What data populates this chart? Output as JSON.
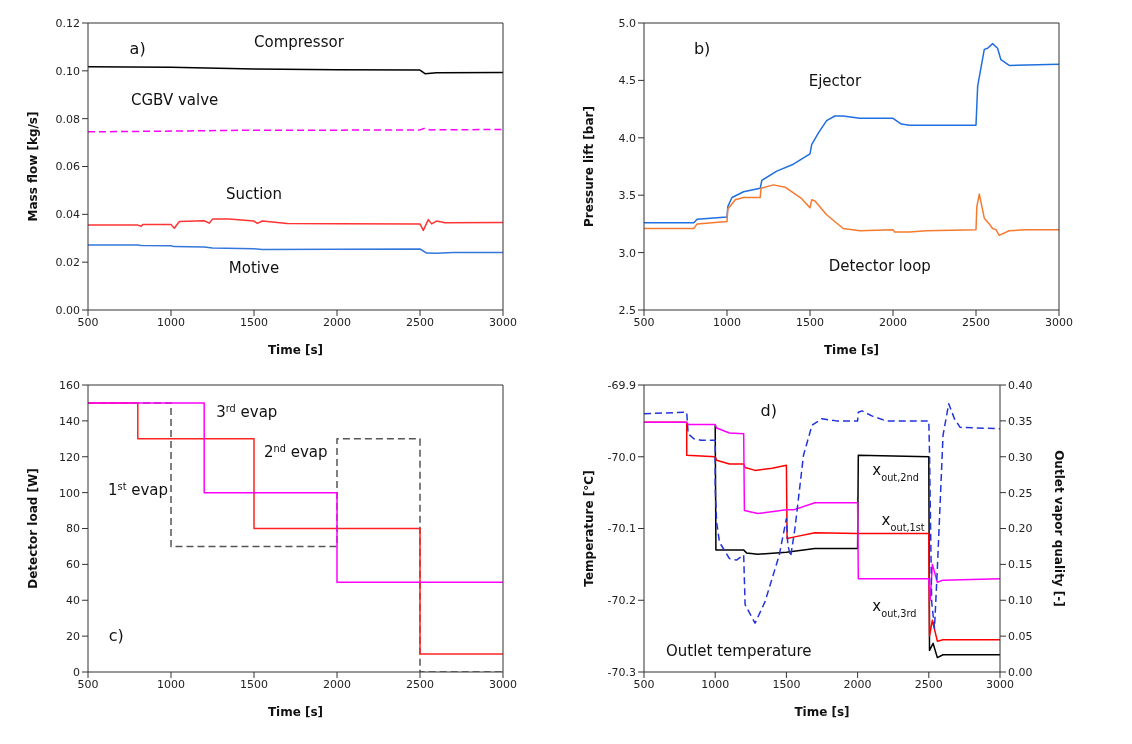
{
  "chart_data": [
    {
      "type": "line",
      "xlabel": "Time [s]",
      "ylabel": "Mass flow [kg/s]",
      "annotations": [
        "a)"
      ],
      "xlim": [
        500,
        3000
      ],
      "xticks": [
        500,
        1000,
        1500,
        2000,
        2500,
        3000
      ],
      "ylim": [
        0,
        0.12
      ],
      "yticks": [
        {
          "value": 0,
          "label": "0.00"
        },
        {
          "value": 0.02,
          "label": "0.02"
        },
        {
          "value": 0.04,
          "label": "0.04"
        },
        {
          "value": 0.06,
          "label": "0.06"
        },
        {
          "value": 0.08,
          "label": "0.08"
        },
        {
          "value": 0.1,
          "label": "0.10"
        },
        {
          "value": 0.12,
          "label": "0.12"
        }
      ],
      "series": [
        {
          "name": "Compressor",
          "color": "#000000",
          "x": [
            500,
            1000,
            1500,
            2000,
            2500,
            2530,
            2600,
            3000
          ],
          "values": [
            0.1017,
            0.1015,
            0.1008,
            0.1005,
            0.1003,
            0.0988,
            0.0992,
            0.0993
          ]
        },
        {
          "name": "CGBV valve",
          "color": "#ff00ff",
          "line_style": "dashed",
          "x": [
            500,
            1000,
            1500,
            2000,
            2500,
            2530,
            2560,
            3000
          ],
          "values": [
            0.0745,
            0.0748,
            0.0752,
            0.0752,
            0.0753,
            0.076,
            0.0753,
            0.0755
          ]
        },
        {
          "name": "Suction",
          "color": "#ff3333",
          "x": [
            500,
            800,
            820,
            830,
            1000,
            1020,
            1050,
            1200,
            1230,
            1250,
            1350,
            1500,
            1520,
            1550,
            1700,
            2000,
            2500,
            2520,
            2550,
            2570,
            2600,
            2650,
            3000
          ],
          "values": [
            0.0355,
            0.0355,
            0.035,
            0.0357,
            0.0358,
            0.0342,
            0.037,
            0.0373,
            0.0363,
            0.038,
            0.038,
            0.0372,
            0.0362,
            0.0372,
            0.0362,
            0.0361,
            0.036,
            0.0333,
            0.0378,
            0.036,
            0.0372,
            0.0365,
            0.0366
          ]
        },
        {
          "name": "Motive",
          "color": "#3377dd",
          "x": [
            500,
            800,
            820,
            1000,
            1020,
            1200,
            1250,
            1500,
            1550,
            2000,
            2500,
            2540,
            2600,
            2700,
            3000
          ],
          "values": [
            0.0272,
            0.0272,
            0.027,
            0.0269,
            0.0265,
            0.0263,
            0.0259,
            0.0256,
            0.0253,
            0.0254,
            0.0255,
            0.0238,
            0.0237,
            0.024,
            0.024
          ]
        }
      ]
    },
    {
      "type": "line",
      "xlabel": "Time [s]",
      "ylabel": "Pressure lift [bar]",
      "annotations": [
        "b)"
      ],
      "xlim": [
        500,
        3000
      ],
      "xticks": [
        500,
        1000,
        1500,
        2000,
        2500,
        3000
      ],
      "ylim": [
        2.5,
        5
      ],
      "yticks": [
        2.5,
        {
          "value": 3,
          "label": "3.0"
        },
        3.5,
        {
          "value": 4,
          "label": "4.0"
        },
        4.5,
        {
          "value": 5,
          "label": "5.0"
        }
      ],
      "series": [
        {
          "name": "Ejector",
          "color": "#1f6fe0",
          "x": [
            500,
            800,
            820,
            900,
            1000,
            1005,
            1030,
            1100,
            1200,
            1210,
            1300,
            1400,
            1500,
            1510,
            1550,
            1600,
            1650,
            1700,
            1800,
            2000,
            2050,
            2100,
            2500,
            2510,
            2550,
            2570,
            2600,
            2630,
            2650,
            2700,
            3000
          ],
          "values": [
            3.26,
            3.26,
            3.29,
            3.3,
            3.31,
            3.4,
            3.48,
            3.53,
            3.56,
            3.63,
            3.71,
            3.77,
            3.86,
            3.94,
            4.04,
            4.15,
            4.19,
            4.19,
            4.17,
            4.17,
            4.12,
            4.11,
            4.11,
            4.45,
            4.77,
            4.78,
            4.82,
            4.78,
            4.68,
            4.63,
            4.64
          ]
        },
        {
          "name": "Detector loop",
          "color": "#f47a30",
          "x": [
            500,
            800,
            820,
            1000,
            1005,
            1050,
            1100,
            1200,
            1205,
            1280,
            1350,
            1450,
            1500,
            1510,
            1530,
            1600,
            1700,
            1800,
            2000,
            2010,
            2100,
            2200,
            2500,
            2505,
            2520,
            2550,
            2580,
            2600,
            2620,
            2640,
            2700,
            2800,
            3000
          ],
          "values": [
            3.21,
            3.21,
            3.25,
            3.27,
            3.38,
            3.46,
            3.48,
            3.48,
            3.56,
            3.59,
            3.57,
            3.47,
            3.39,
            3.46,
            3.45,
            3.33,
            3.21,
            3.19,
            3.2,
            3.18,
            3.18,
            3.19,
            3.2,
            3.4,
            3.51,
            3.3,
            3.25,
            3.21,
            3.2,
            3.15,
            3.19,
            3.2,
            3.2
          ]
        }
      ]
    },
    {
      "type": "step",
      "xlabel": "Time [s]",
      "ylabel": "Detector load [W]",
      "annotations": [
        "c)"
      ],
      "xlim": [
        500,
        3000
      ],
      "xticks": [
        500,
        1000,
        1500,
        2000,
        2500,
        3000
      ],
      "ylim": [
        0,
        160
      ],
      "yticks": [
        0,
        20,
        40,
        60,
        80,
        100,
        120,
        140,
        160
      ],
      "series": [
        {
          "name": "1$^{st}$ evap",
          "color": "#555555",
          "line_style": "dashed",
          "x": [
            500,
            1000,
            2000,
            2500,
            3000
          ],
          "values": [
            150,
            70,
            130,
            0,
            0
          ]
        },
        {
          "name": "2$^{nd}$ evap",
          "color": "#ff2222",
          "x": [
            500,
            800,
            1500,
            2500,
            3000
          ],
          "values": [
            150,
            130,
            80,
            10,
            10
          ]
        },
        {
          "name": "3$^{rd}$ evap",
          "color": "#ff00ff",
          "x": [
            500,
            1200,
            2000,
            3000
          ],
          "values": [
            150,
            100,
            50,
            50
          ]
        }
      ]
    },
    {
      "type": "line",
      "xlabel": "Time [s]",
      "ylabel": "Temperature [°C]",
      "y2label": "Outlet vapor quality [-]",
      "annotations": [
        "d)"
      ],
      "xlim": [
        500,
        3000
      ],
      "xticks": [
        500,
        1000,
        1500,
        2000,
        2500,
        3000
      ],
      "ylim": [
        -70.3,
        -69.9
      ],
      "yticks": [
        -70.3,
        -70.2,
        -70.1,
        {
          "value": -70,
          "label": "-70.0"
        },
        -69.9
      ],
      "y2lim": [
        0,
        0.4
      ],
      "y2ticks": [
        {
          "value": 0,
          "label": "0.00"
        },
        0.05,
        {
          "value": 0.1,
          "label": "0.10"
        },
        0.15,
        {
          "value": 0.2,
          "label": "0.20"
        },
        0.25,
        {
          "value": 0.3,
          "label": "0.30"
        },
        0.35,
        {
          "value": 0.4,
          "label": "0.40"
        }
      ],
      "series": [
        {
          "name": "x$_{out,2nd}$",
          "color": "#000000",
          "axis": "y2",
          "x": [
            1000,
            1005,
            1200,
            1220,
            1300,
            1500,
            1700,
            2000,
            2005,
            2500,
            2505,
            2530,
            2560,
            2600,
            3000
          ],
          "values": [
            0.345,
            0.17,
            0.17,
            0.166,
            0.164,
            0.167,
            0.172,
            0.172,
            0.302,
            0.3,
            0.03,
            0.04,
            0.02,
            0.024,
            0.024
          ]
        },
        {
          "name": "x$_{out,1st}$",
          "color": "#ff0000",
          "axis": "y2",
          "x": [
            500,
            800,
            800,
            1000,
            1010,
            1100,
            1200,
            1210,
            1280,
            1400,
            1500,
            1505,
            1550,
            1700,
            2000,
            2500,
            2505,
            2525,
            2560,
            2600,
            3000
          ],
          "values": [
            0.348,
            0.348,
            0.302,
            0.3,
            0.295,
            0.29,
            0.29,
            0.285,
            0.281,
            0.284,
            0.288,
            0.186,
            0.188,
            0.194,
            0.193,
            0.193,
            0.05,
            0.072,
            0.043,
            0.045,
            0.045
          ]
        },
        {
          "name": "x$_{out,3rd}$",
          "color": "#ff00ff",
          "axis": "y2",
          "x": [
            500,
            800,
            810,
            1000,
            1010,
            1100,
            1200,
            1205,
            1300,
            1500,
            1550,
            1700,
            2000,
            2005,
            2500,
            2510,
            2525,
            2560,
            2600,
            3000
          ],
          "values": [
            0.348,
            0.348,
            0.345,
            0.345,
            0.34,
            0.333,
            0.332,
            0.225,
            0.221,
            0.226,
            0.226,
            0.236,
            0.236,
            0.13,
            0.13,
            0.1,
            0.15,
            0.125,
            0.128,
            0.13
          ]
        },
        {
          "name": "Outlet temperature",
          "color": "#2233dd",
          "line_style": "dashed",
          "x": [
            500,
            800,
            810,
            850,
            900,
            1000,
            1000,
            1010,
            1030,
            1100,
            1150,
            1200,
            1210,
            1280,
            1350,
            1450,
            1500,
            1510,
            1530,
            1560,
            1620,
            1680,
            1750,
            1850,
            2000,
            2005,
            2030,
            2100,
            2200,
            2500,
            2505,
            2520,
            2540,
            2560,
            2600,
            2640,
            2680,
            2720,
            3000
          ],
          "values": [
            -69.94,
            -69.938,
            -69.968,
            -69.975,
            -69.977,
            -69.977,
            -70.044,
            -70.091,
            -70.119,
            -70.142,
            -70.144,
            -70.137,
            -70.206,
            -70.232,
            -70.202,
            -70.137,
            -70.086,
            -70.123,
            -70.139,
            -70.1,
            -69.998,
            -69.956,
            -69.947,
            -69.95,
            -69.95,
            -69.938,
            -69.936,
            -69.943,
            -69.95,
            -69.95,
            -69.994,
            -70.202,
            -70.239,
            -70.156,
            -69.97,
            -69.926,
            -69.947,
            -69.959,
            -69.961
          ]
        }
      ]
    }
  ]
}
